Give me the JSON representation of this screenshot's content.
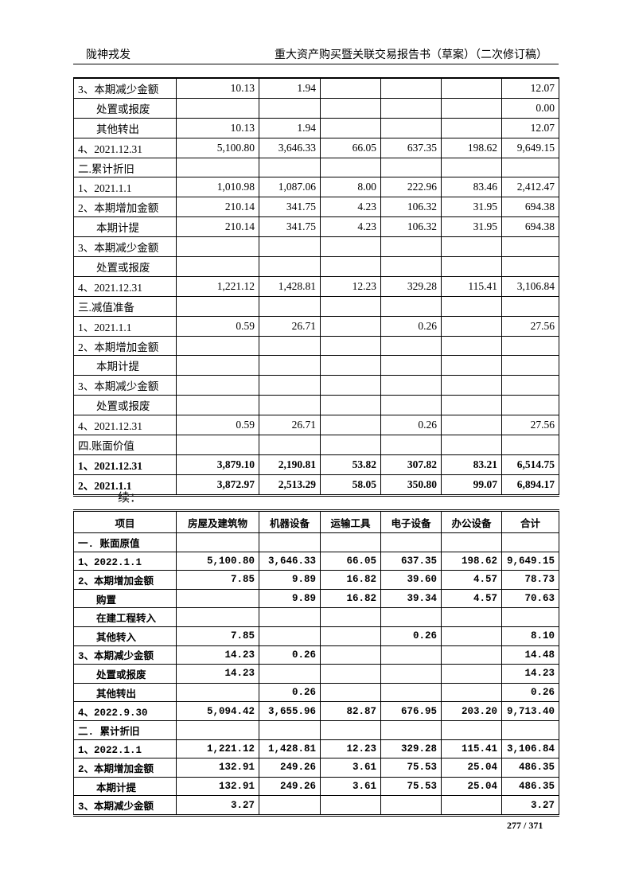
{
  "header": {
    "left": "陇神戎发",
    "right": "重大资产购买暨关联交易报告书（草案）（二次修订稿）"
  },
  "table1": {
    "rows": [
      {
        "label": "3、本期减少金额",
        "indent": false,
        "bold": false,
        "values": [
          "10.13",
          "1.94",
          "",
          "",
          "",
          "12.07"
        ]
      },
      {
        "label": "处置或报废",
        "indent": true,
        "bold": false,
        "values": [
          "",
          "",
          "",
          "",
          "",
          "0.00"
        ]
      },
      {
        "label": "其他转出",
        "indent": true,
        "bold": false,
        "values": [
          "10.13",
          "1.94",
          "",
          "",
          "",
          "12.07"
        ]
      },
      {
        "label": "4、2021.12.31",
        "indent": false,
        "bold": false,
        "values": [
          "5,100.80",
          "3,646.33",
          "66.05",
          "637.35",
          "198.62",
          "9,649.15"
        ]
      },
      {
        "label": "二.累计折旧",
        "indent": false,
        "bold": false,
        "values": [
          "",
          "",
          "",
          "",
          "",
          ""
        ]
      },
      {
        "label": "1、2021.1.1",
        "indent": false,
        "bold": false,
        "values": [
          "1,010.98",
          "1,087.06",
          "8.00",
          "222.96",
          "83.46",
          "2,412.47"
        ]
      },
      {
        "label": "2、本期增加金额",
        "indent": false,
        "bold": false,
        "values": [
          "210.14",
          "341.75",
          "4.23",
          "106.32",
          "31.95",
          "694.38"
        ]
      },
      {
        "label": "本期计提",
        "indent": true,
        "bold": false,
        "values": [
          "210.14",
          "341.75",
          "4.23",
          "106.32",
          "31.95",
          "694.38"
        ]
      },
      {
        "label": "3、本期减少金额",
        "indent": false,
        "bold": false,
        "values": [
          "",
          "",
          "",
          "",
          "",
          ""
        ]
      },
      {
        "label": "处置或报废",
        "indent": true,
        "bold": false,
        "values": [
          "",
          "",
          "",
          "",
          "",
          ""
        ]
      },
      {
        "label": "4、2021.12.31",
        "indent": false,
        "bold": false,
        "values": [
          "1,221.12",
          "1,428.81",
          "12.23",
          "329.28",
          "115.41",
          "3,106.84"
        ]
      },
      {
        "label": "三.减值准备",
        "indent": false,
        "bold": false,
        "values": [
          "",
          "",
          "",
          "",
          "",
          ""
        ]
      },
      {
        "label": "1、2021.1.1",
        "indent": false,
        "bold": false,
        "values": [
          "0.59",
          "26.71",
          "",
          "0.26",
          "",
          "27.56"
        ]
      },
      {
        "label": "2、本期增加金额",
        "indent": false,
        "bold": false,
        "values": [
          "",
          "",
          "",
          "",
          "",
          ""
        ]
      },
      {
        "label": "本期计提",
        "indent": true,
        "bold": false,
        "values": [
          "",
          "",
          "",
          "",
          "",
          ""
        ]
      },
      {
        "label": "3、本期减少金额",
        "indent": false,
        "bold": false,
        "values": [
          "",
          "",
          "",
          "",
          "",
          ""
        ]
      },
      {
        "label": "处置或报废",
        "indent": true,
        "bold": false,
        "values": [
          "",
          "",
          "",
          "",
          "",
          ""
        ]
      },
      {
        "label": "4、2021.12.31",
        "indent": false,
        "bold": false,
        "values": [
          "0.59",
          "26.71",
          "",
          "0.26",
          "",
          "27.56"
        ]
      },
      {
        "label": "四.账面价值",
        "indent": false,
        "bold": false,
        "values": [
          "",
          "",
          "",
          "",
          "",
          ""
        ]
      },
      {
        "label": "1、2021.12.31",
        "indent": false,
        "bold": true,
        "values": [
          "3,879.10",
          "2,190.81",
          "53.82",
          "307.82",
          "83.21",
          "6,514.75"
        ]
      },
      {
        "label": "2、2021.1.1",
        "indent": false,
        "bold": true,
        "values": [
          "3,872.97",
          "2,513.29",
          "58.05",
          "350.80",
          "99.07",
          "6,894.17"
        ]
      }
    ]
  },
  "continued_label": "续：",
  "table2": {
    "headers": [
      "项目",
      "房屋及建筑物",
      "机器设备",
      "运输工具",
      "电子设备",
      "办公设备",
      "合计"
    ],
    "rows": [
      {
        "label": "一. 账面原值",
        "indent": false,
        "values": [
          "",
          "",
          "",
          "",
          "",
          ""
        ]
      },
      {
        "label": "1、2022.1.1",
        "indent": false,
        "values": [
          "5,100.80",
          "3,646.33",
          "66.05",
          "637.35",
          "198.62",
          "9,649.15"
        ]
      },
      {
        "label": "2、本期增加金额",
        "indent": false,
        "values": [
          "7.85",
          "9.89",
          "16.82",
          "39.60",
          "4.57",
          "78.73"
        ]
      },
      {
        "label": "购置",
        "indent": true,
        "values": [
          "",
          "9.89",
          "16.82",
          "39.34",
          "4.57",
          "70.63"
        ]
      },
      {
        "label": "在建工程转入",
        "indent": true,
        "values": [
          "",
          "",
          "",
          "",
          "",
          ""
        ]
      },
      {
        "label": "其他转入",
        "indent": true,
        "values": [
          "7.85",
          "",
          "",
          "0.26",
          "",
          "8.10"
        ]
      },
      {
        "label": "3、本期减少金额",
        "indent": false,
        "values": [
          "14.23",
          "0.26",
          "",
          "",
          "",
          "14.48"
        ]
      },
      {
        "label": "处置或报废",
        "indent": true,
        "values": [
          "14.23",
          "",
          "",
          "",
          "",
          "14.23"
        ]
      },
      {
        "label": "其他转出",
        "indent": true,
        "values": [
          "",
          "0.26",
          "",
          "",
          "",
          "0.26"
        ]
      },
      {
        "label": "4、2022.9.30",
        "indent": false,
        "values": [
          "5,094.42",
          "3,655.96",
          "82.87",
          "676.95",
          "203.20",
          "9,713.40"
        ]
      },
      {
        "label": "二. 累计折旧",
        "indent": false,
        "values": [
          "",
          "",
          "",
          "",
          "",
          ""
        ]
      },
      {
        "label": "1、2022.1.1",
        "indent": false,
        "values": [
          "1,221.12",
          "1,428.81",
          "12.23",
          "329.28",
          "115.41",
          "3,106.84"
        ]
      },
      {
        "label": "2、本期增加金额",
        "indent": false,
        "values": [
          "132.91",
          "249.26",
          "3.61",
          "75.53",
          "25.04",
          "486.35"
        ]
      },
      {
        "label": "本期计提",
        "indent": true,
        "values": [
          "132.91",
          "249.26",
          "3.61",
          "75.53",
          "25.04",
          "486.35"
        ]
      },
      {
        "label": "3、本期减少金额",
        "indent": false,
        "values": [
          "3.27",
          "",
          "",
          "",
          "",
          "3.27"
        ]
      }
    ]
  },
  "footer": {
    "page": "277 / 371"
  }
}
